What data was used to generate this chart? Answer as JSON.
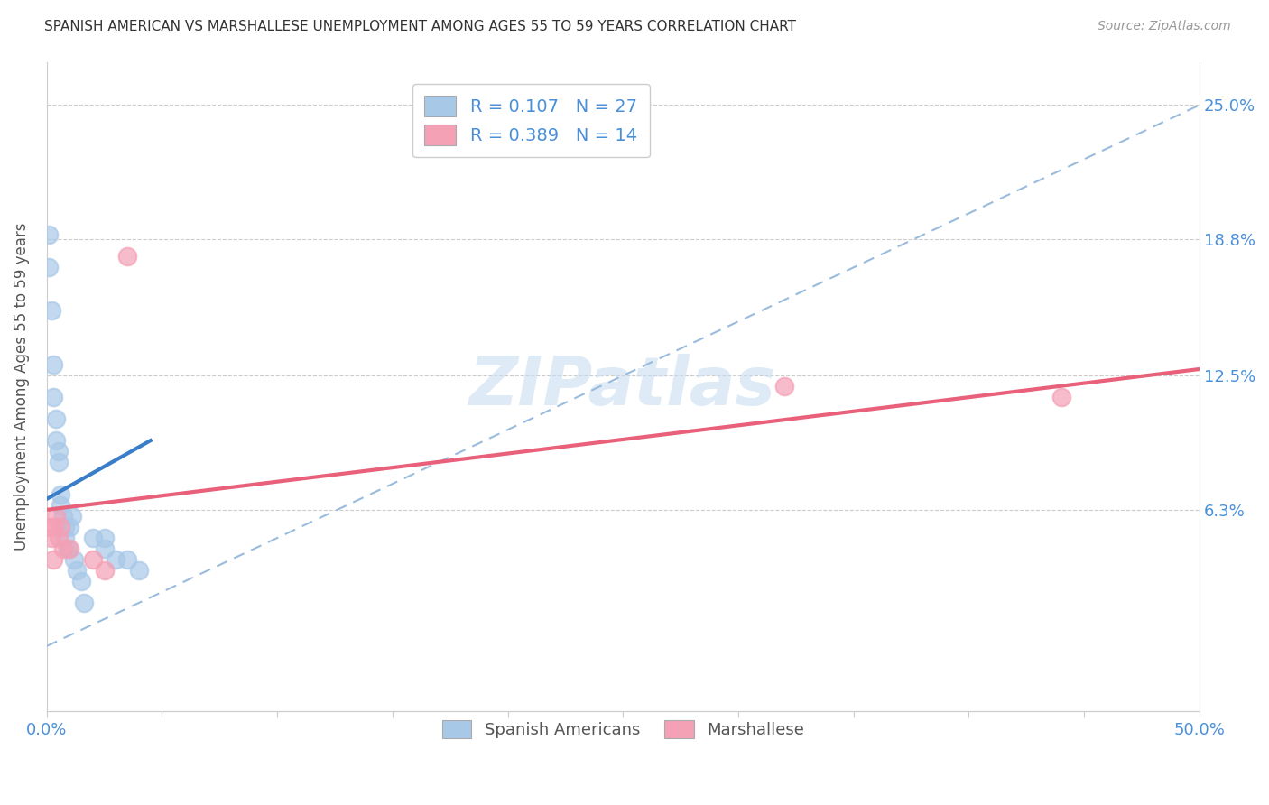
{
  "title": "SPANISH AMERICAN VS MARSHALLESE UNEMPLOYMENT AMONG AGES 55 TO 59 YEARS CORRELATION CHART",
  "source": "Source: ZipAtlas.com",
  "ylabel": "Unemployment Among Ages 55 to 59 years",
  "xlim": [
    0.0,
    0.5
  ],
  "ylim": [
    -0.03,
    0.27
  ],
  "ytick_right_labels": [
    "6.3%",
    "12.5%",
    "18.8%",
    "25.0%"
  ],
  "ytick_right_values": [
    0.063,
    0.125,
    0.188,
    0.25
  ],
  "watermark": "ZIPatlas",
  "spanish_color": "#A8C8E8",
  "marshallese_color": "#F4A0B5",
  "spanish_trend_color": "#3A7DC9",
  "marshallese_trend_color": "#E8607A",
  "diagonal_color": "#99BBDD",
  "background_color": "#FFFFFF",
  "sa_x": [
    0.001,
    0.001,
    0.002,
    0.003,
    0.003,
    0.004,
    0.004,
    0.005,
    0.005,
    0.006,
    0.006,
    0.007,
    0.008,
    0.008,
    0.009,
    0.01,
    0.011,
    0.012,
    0.013,
    0.015,
    0.016,
    0.02,
    0.025,
    0.025,
    0.03,
    0.035,
    0.04
  ],
  "sa_y": [
    0.19,
    0.175,
    0.155,
    0.13,
    0.115,
    0.105,
    0.095,
    0.09,
    0.085,
    0.07,
    0.065,
    0.06,
    0.055,
    0.05,
    0.045,
    0.055,
    0.06,
    0.04,
    0.035,
    0.03,
    0.02,
    0.05,
    0.05,
    0.045,
    0.04,
    0.04,
    0.035
  ],
  "ma_x": [
    0.001,
    0.002,
    0.003,
    0.003,
    0.004,
    0.005,
    0.006,
    0.007,
    0.01,
    0.02,
    0.025,
    0.035,
    0.32,
    0.44
  ],
  "ma_y": [
    0.055,
    0.05,
    0.055,
    0.04,
    0.06,
    0.05,
    0.055,
    0.045,
    0.045,
    0.04,
    0.035,
    0.18,
    0.12,
    0.115
  ],
  "sa_trend_x0": 0.0,
  "sa_trend_x1": 0.045,
  "sa_trend_y0": 0.068,
  "sa_trend_y1": 0.095,
  "ma_trend_x0": 0.0,
  "ma_trend_x1": 0.5,
  "ma_trend_y0": 0.063,
  "ma_trend_y1": 0.128
}
